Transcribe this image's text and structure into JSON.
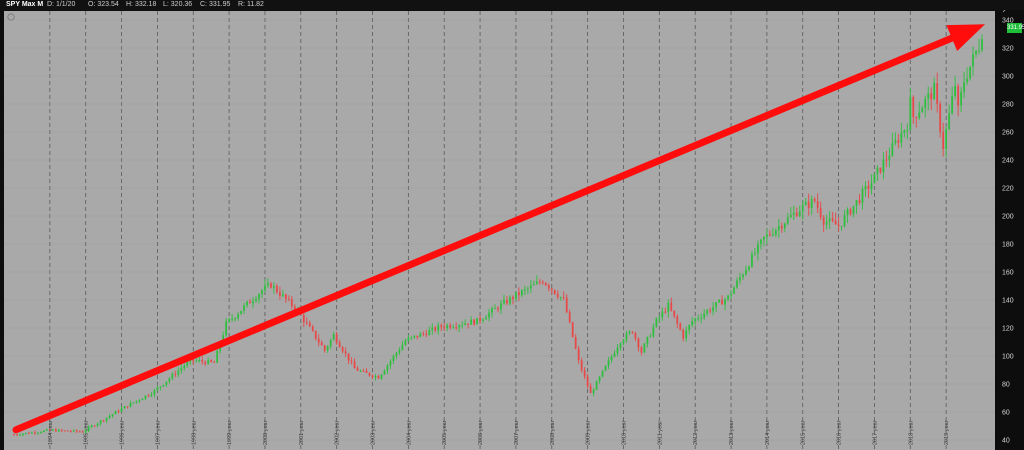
{
  "header": {
    "symbol_label": "SPY Max M",
    "date": "D: 1/1/20",
    "open": "O: 323.54",
    "high": "H: 332.18",
    "low": "L: 320.36",
    "close": "C: 331.95",
    "range": "R: 11.82"
  },
  "last_price": "331.95",
  "colors": {
    "background": "#a9a9a9",
    "up": "#2fbf3f",
    "down": "#e84848",
    "arrow": "#ff0d0d",
    "badge": "#1fbf3a"
  },
  "chart_data": {
    "type": "candlestick",
    "timeframe": "monthly",
    "grid": true,
    "ylim": [
      40,
      342
    ],
    "y_ticks": [
      40,
      60,
      80,
      100,
      120,
      140,
      160,
      180,
      200,
      220,
      240,
      260,
      280,
      300,
      320,
      340
    ],
    "x_ticks": [
      "1994 year",
      "1995 year",
      "1996 year",
      "1997 year",
      "1998 year",
      "1999 year",
      "2000 year",
      "2001 year",
      "2002 year",
      "2003 year",
      "2004 year",
      "2005 year",
      "2006 year",
      "2007 year",
      "2008 year",
      "2009 year",
      "2010 year",
      "2011 year",
      "2012 year",
      "2013 year",
      "2014 year",
      "2015 year",
      "2016 year",
      "2017 year",
      "2018 year",
      "2019 year"
    ],
    "price_path": [
      {
        "date": "1993-02",
        "close": 44
      },
      {
        "date": "1994-01",
        "close": 47
      },
      {
        "date": "1994-12",
        "close": 46
      },
      {
        "date": "1995-12",
        "close": 61
      },
      {
        "date": "1996-12",
        "close": 75
      },
      {
        "date": "1997-12",
        "close": 97
      },
      {
        "date": "1998-08",
        "close": 95
      },
      {
        "date": "1998-12",
        "close": 123
      },
      {
        "date": "1999-12",
        "close": 147
      },
      {
        "date": "2000-03",
        "close": 151
      },
      {
        "date": "2000-12",
        "close": 132
      },
      {
        "date": "2001-09",
        "close": 104
      },
      {
        "date": "2001-12",
        "close": 115
      },
      {
        "date": "2002-07",
        "close": 91
      },
      {
        "date": "2002-10",
        "close": 88
      },
      {
        "date": "2003-03",
        "close": 85
      },
      {
        "date": "2003-12",
        "close": 111
      },
      {
        "date": "2004-12",
        "close": 121
      },
      {
        "date": "2005-12",
        "close": 125
      },
      {
        "date": "2006-12",
        "close": 142
      },
      {
        "date": "2007-10",
        "close": 154
      },
      {
        "date": "2008-05",
        "close": 140
      },
      {
        "date": "2008-10",
        "close": 96
      },
      {
        "date": "2009-02",
        "close": 73
      },
      {
        "date": "2009-12",
        "close": 111
      },
      {
        "date": "2010-04",
        "close": 118
      },
      {
        "date": "2010-07",
        "close": 103
      },
      {
        "date": "2010-12",
        "close": 125
      },
      {
        "date": "2011-04",
        "close": 136
      },
      {
        "date": "2011-09",
        "close": 114
      },
      {
        "date": "2011-12",
        "close": 125
      },
      {
        "date": "2012-12",
        "close": 142
      },
      {
        "date": "2013-12",
        "close": 184
      },
      {
        "date": "2014-12",
        "close": 205
      },
      {
        "date": "2015-05",
        "close": 211
      },
      {
        "date": "2015-08",
        "close": 197
      },
      {
        "date": "2016-01",
        "close": 193
      },
      {
        "date": "2016-12",
        "close": 224
      },
      {
        "date": "2017-12",
        "close": 266
      },
      {
        "date": "2018-01",
        "close": 281
      },
      {
        "date": "2018-02",
        "close": 271
      },
      {
        "date": "2018-09",
        "close": 290
      },
      {
        "date": "2018-12",
        "close": 250
      },
      {
        "date": "2019-04",
        "close": 294
      },
      {
        "date": "2019-05",
        "close": 275
      },
      {
        "date": "2019-07",
        "close": 297
      },
      {
        "date": "2019-12",
        "close": 322
      },
      {
        "date": "2020-01",
        "close": 331.95
      }
    ],
    "last_candle": {
      "date": "1/1/20",
      "open": 323.54,
      "high": 332.18,
      "low": 320.36,
      "close": 331.95
    },
    "annotation": {
      "type": "arrow",
      "color": "red",
      "from": {
        "date": "1993-02",
        "value": 48
      },
      "to": {
        "date": "2020-01",
        "value": 337
      }
    }
  }
}
